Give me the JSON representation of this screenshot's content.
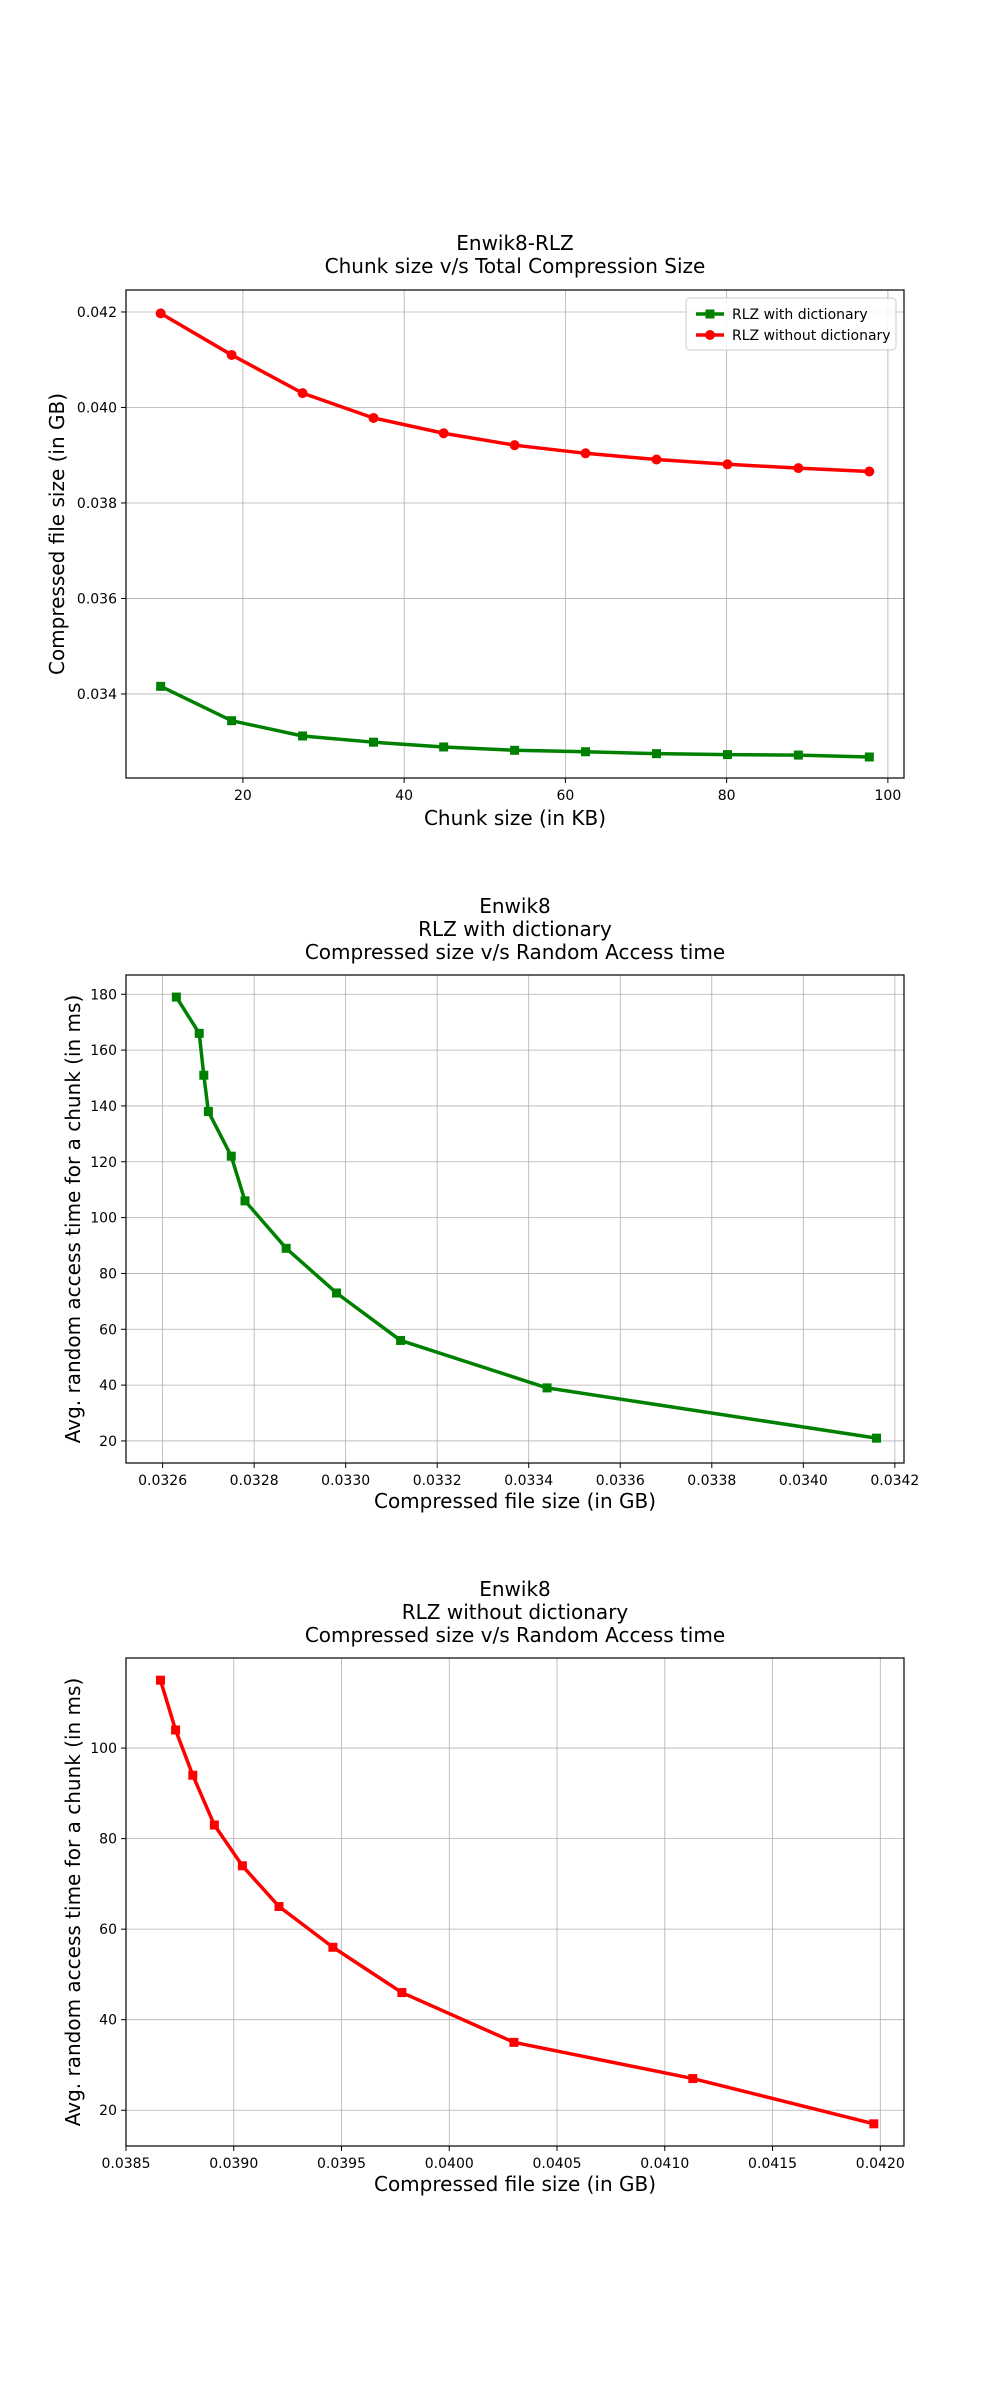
{
  "chart_data": [
    {
      "type": "line",
      "title_lines": [
        "Enwik8-RLZ",
        "Chunk size v/s Total Compression Size"
      ],
      "xlabel": "Chunk size (in KB)",
      "ylabel": "Compressed file size (in GB)",
      "xlim": [
        5.5,
        102
      ],
      "ylim": [
        0.03224,
        0.04246
      ],
      "xticks": [
        20,
        40,
        60,
        80,
        100
      ],
      "xtick_labels": [
        "20",
        "40",
        "60",
        "80",
        "100"
      ],
      "yticks": [
        0.034,
        0.036,
        0.038,
        0.04,
        0.042
      ],
      "ytick_labels": [
        "0.034",
        "0.036",
        "0.038",
        "0.040",
        "0.042"
      ],
      "grid": true,
      "legend_position": "top-right",
      "series": [
        {
          "name": "RLZ with dictionary",
          "color": "#008000",
          "marker": "square",
          "x": [
            9.8,
            18.6,
            27.4,
            36.2,
            44.9,
            53.7,
            62.5,
            71.3,
            80.1,
            88.9,
            97.7
          ],
          "y": [
            0.03416,
            0.03344,
            0.03312,
            0.03299,
            0.03289,
            0.03282,
            0.03279,
            0.03275,
            0.03273,
            0.03272,
            0.03268
          ]
        },
        {
          "name": "RLZ without dictionary",
          "color": "#ff0000",
          "marker": "circle",
          "x": [
            9.8,
            18.6,
            27.4,
            36.2,
            44.9,
            53.7,
            62.5,
            71.3,
            80.1,
            88.9,
            97.7
          ],
          "y": [
            0.04197,
            0.0411,
            0.0403,
            0.03978,
            0.03946,
            0.03921,
            0.03904,
            0.03891,
            0.03881,
            0.03873,
            0.03866
          ]
        }
      ]
    },
    {
      "type": "line",
      "title_lines": [
        "Enwik8",
        "RLZ with dictionary",
        "Compressed size v/s Random Access time"
      ],
      "xlabel": "Compressed file size (in GB)",
      "ylabel": "Avg. random access time for a chunk (in ms)",
      "xlim": [
        0.03252,
        0.03422
      ],
      "ylim": [
        12.1,
        186.9
      ],
      "xticks": [
        0.0326,
        0.0328,
        0.033,
        0.0332,
        0.0334,
        0.0336,
        0.0338,
        0.034,
        0.0342
      ],
      "xtick_labels": [
        "0.0326",
        "0.0328",
        "0.0330",
        "0.0332",
        "0.0334",
        "0.0336",
        "0.0338",
        "0.0340",
        "0.0342"
      ],
      "yticks": [
        20,
        40,
        60,
        80,
        100,
        120,
        140,
        160,
        180
      ],
      "ytick_labels": [
        "20",
        "40",
        "60",
        "80",
        "100",
        "120",
        "140",
        "160",
        "180"
      ],
      "grid": true,
      "series": [
        {
          "color": "#008000",
          "marker": "square",
          "x": [
            0.03263,
            0.03268,
            0.03269,
            0.0327,
            0.03275,
            0.03278,
            0.03287,
            0.03298,
            0.03312,
            0.03344,
            0.03416
          ],
          "y": [
            179,
            166,
            151,
            138,
            122,
            106,
            89,
            73,
            56,
            39,
            21
          ]
        }
      ]
    },
    {
      "type": "line",
      "title_lines": [
        "Enwik8",
        "RLZ without dictionary",
        "Compressed size v/s Random Access time"
      ],
      "xlabel": "Compressed file size (in GB)",
      "ylabel": "Avg. random access time for a chunk (in ms)",
      "xlim": [
        0.0385,
        0.04211
      ],
      "ylim": [
        12.1,
        119.9
      ],
      "xticks": [
        0.0385,
        0.039,
        0.0395,
        0.04,
        0.0405,
        0.041,
        0.0415,
        0.042
      ],
      "xtick_labels": [
        "0.0385",
        "0.0390",
        "0.0395",
        "0.0400",
        "0.0405",
        "0.0410",
        "0.0415",
        "0.0420"
      ],
      "yticks": [
        20,
        40,
        60,
        80,
        100
      ],
      "ytick_labels": [
        "20",
        "40",
        "60",
        "80",
        "100"
      ],
      "grid": true,
      "series": [
        {
          "color": "#ff0000",
          "marker": "square",
          "x": [
            0.03866,
            0.03873,
            0.03881,
            0.03891,
            0.03904,
            0.03921,
            0.03946,
            0.03978,
            0.0403,
            0.04113,
            0.04197
          ],
          "y": [
            115,
            104,
            94,
            83,
            74,
            65,
            56,
            46,
            35,
            27,
            17
          ]
        }
      ]
    }
  ]
}
